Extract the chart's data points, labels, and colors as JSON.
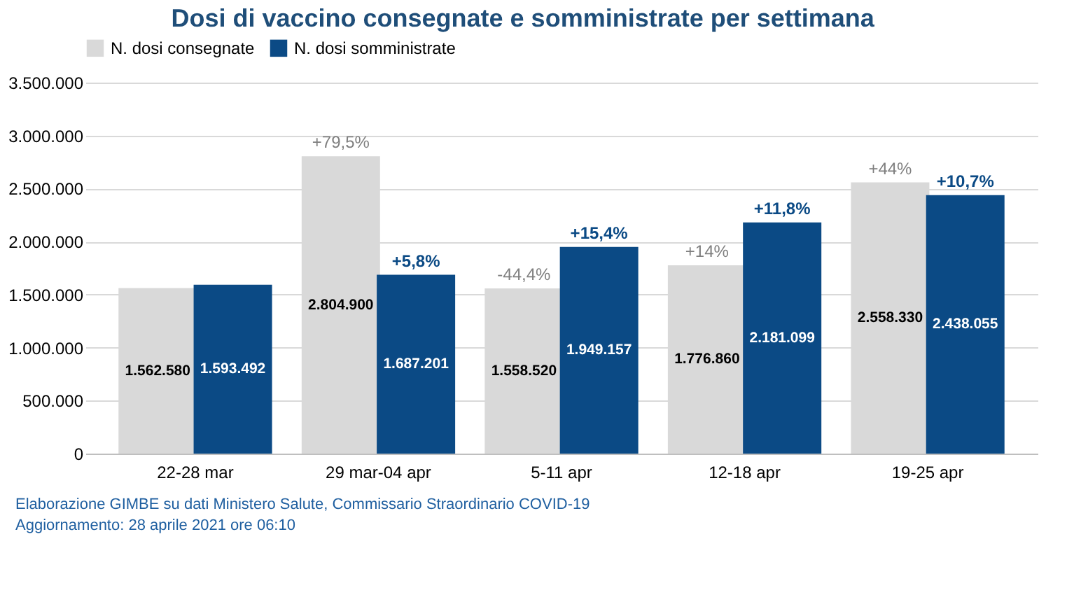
{
  "chart_data": {
    "type": "bar",
    "title": "Dosi di vaccino consegnate e somministrate per settimana",
    "categories": [
      "22-28 mar",
      "29 mar-04 apr",
      "5-11 apr",
      "12-18 apr",
      "19-25 apr"
    ],
    "series": [
      {
        "name": "N. dosi consegnate",
        "color": "#d9d9d9",
        "values": [
          1562580,
          2804900,
          1558520,
          1776860,
          2558330
        ],
        "value_labels": [
          "1.562.580",
          "2.804.900",
          "1.558.520",
          "1.776.860",
          "2.558.330"
        ]
      },
      {
        "name": "N. dosi somministrate",
        "color": "#0b4a85",
        "values": [
          1593492,
          1687201,
          1949157,
          2181099,
          2438055
        ],
        "value_labels": [
          "1.593.492",
          "1.687.201",
          "1.949.157",
          "2.181.099",
          "2.438.055"
        ]
      }
    ],
    "ylim": [
      0,
      3500000
    ],
    "yticks": [
      0,
      {
        "value": 500000,
        "label": "500.000"
      },
      {
        "value": 1000000,
        "label": "1.000.000"
      },
      {
        "value": 1500000,
        "label": "1.500.000"
      },
      {
        "value": 2000000,
        "label": "2.000.000"
      },
      {
        "value": 2500000,
        "label": "2.500.000"
      },
      {
        "value": 3000000,
        "label": "3.000.000"
      },
      {
        "value": 3500000,
        "label": "3.500.000"
      }
    ],
    "grid": "y",
    "legend": "top",
    "annotations": [
      {
        "text": "+79,5%",
        "x": "29 mar-04 apr",
        "y": 2804900
      },
      {
        "text": "+5,8%",
        "x": "29 mar-04 apr",
        "y": 1687201
      },
      {
        "text": "-44,4%",
        "x": "5-11 apr",
        "y": 1558520
      },
      {
        "text": "+15,4%",
        "x": "5-11 apr",
        "y": 1949157
      },
      {
        "text": "+14%",
        "x": "12-18 apr",
        "y": 1776860
      },
      {
        "text": "+11,8%",
        "x": "12-18 apr",
        "y": 2181099
      },
      {
        "text": "+44%",
        "x": "19-25 apr",
        "y": 2558330
      },
      {
        "text": "+10,7%",
        "x": "19-25 apr",
        "y": 2438055
      },
      "Elaborazione GIMBE su dati Ministero Salute, Commissario Straordinario COVID-19",
      "Aggiornamento: 28 aprile 2021 ore 06:10"
    ]
  }
}
